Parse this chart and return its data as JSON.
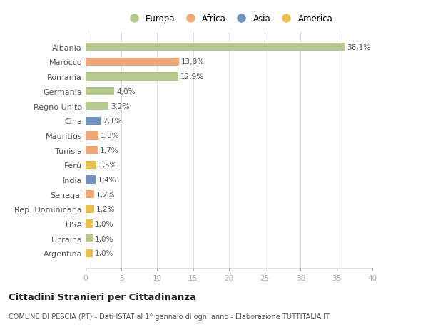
{
  "categories": [
    "Albania",
    "Marocco",
    "Romania",
    "Germania",
    "Regno Unito",
    "Cina",
    "Mauritius",
    "Tunisia",
    "Perù",
    "India",
    "Senegal",
    "Rep. Dominicana",
    "USA",
    "Ucraina",
    "Argentina"
  ],
  "values": [
    36.1,
    13.0,
    12.9,
    4.0,
    3.2,
    2.1,
    1.8,
    1.7,
    1.5,
    1.4,
    1.2,
    1.2,
    1.0,
    1.0,
    1.0
  ],
  "labels": [
    "36,1%",
    "13,0%",
    "12,9%",
    "4,0%",
    "3,2%",
    "2,1%",
    "1,8%",
    "1,7%",
    "1,5%",
    "1,4%",
    "1,2%",
    "1,2%",
    "1,0%",
    "1,0%",
    "1,0%"
  ],
  "colors": [
    "#b5c98e",
    "#f0a878",
    "#b5c98e",
    "#b5c98e",
    "#b5c98e",
    "#7090c0",
    "#f0a878",
    "#f0a878",
    "#e8c050",
    "#7090c0",
    "#f0a878",
    "#e8c050",
    "#e8c050",
    "#b5c98e",
    "#e8c050"
  ],
  "legend_labels": [
    "Europa",
    "Africa",
    "Asia",
    "America"
  ],
  "legend_colors": [
    "#b5c98e",
    "#f0a878",
    "#7090c0",
    "#e8c050"
  ],
  "xlim": [
    0,
    40
  ],
  "xticks": [
    0,
    5,
    10,
    15,
    20,
    25,
    30,
    35,
    40
  ],
  "title": "Cittadini Stranieri per Cittadinanza",
  "subtitle": "COMUNE DI PESCIA (PT) - Dati ISTAT al 1° gennaio di ogni anno - Elaborazione TUTTITALIA.IT",
  "bg_color": "#ffffff",
  "plot_bg_color": "#ffffff",
  "bar_height": 0.55
}
